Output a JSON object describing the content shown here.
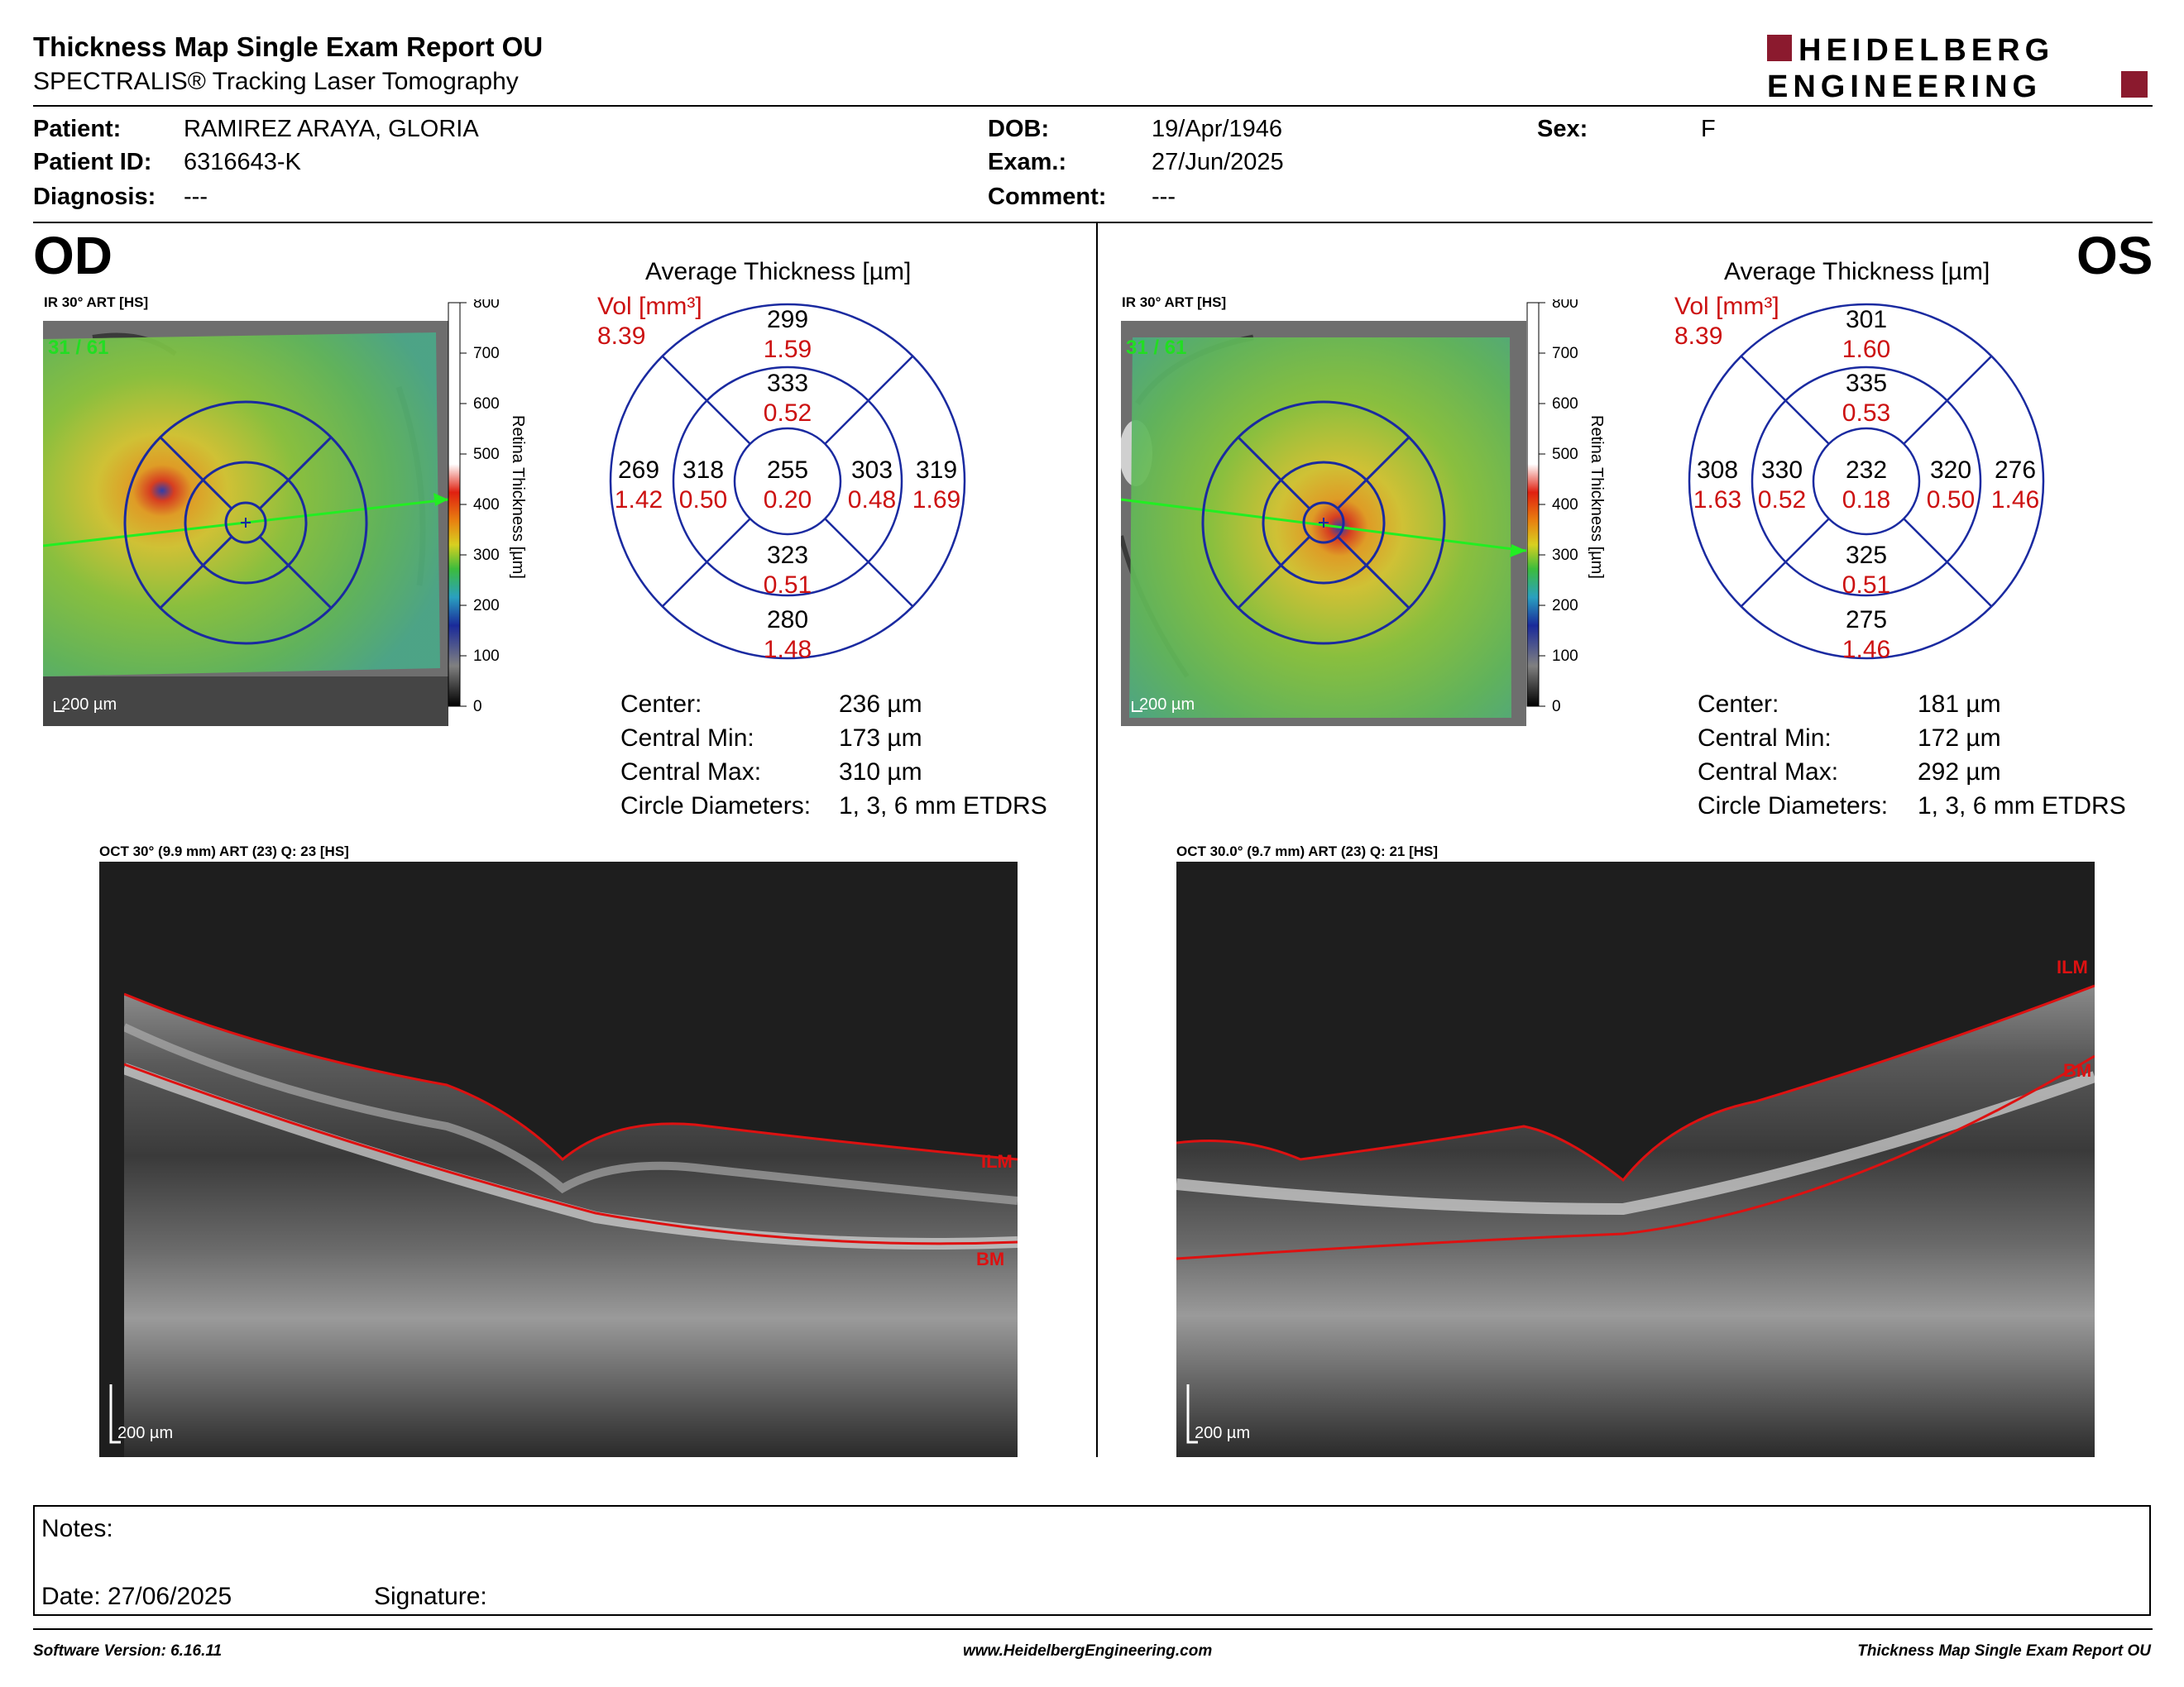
{
  "header": {
    "title": "Thickness Map Single Exam Report OU",
    "subtitle": "SPECTRALIS® Tracking Laser Tomography",
    "logo_line1": "HEIDELBERG",
    "logo_line2": "ENGINEERING",
    "logo_color": "#8b1a2e"
  },
  "patient": {
    "patient_label": "Patient:",
    "patient_value": "RAMIREZ ARAYA, GLORIA",
    "id_label": "Patient ID:",
    "id_value": "6316643-K",
    "diagnosis_label": "Diagnosis:",
    "diagnosis_value": "---",
    "dob_label": "DOB:",
    "dob_value": "19/Apr/1946",
    "exam_label": "Exam.:",
    "exam_value": "27/Jun/2025",
    "comment_label": "Comment:",
    "comment_value": "---",
    "sex_label": "Sex:",
    "sex_value": "F"
  },
  "od": {
    "eye_label": "OD",
    "ir_caption": "IR 30° ART [HS]",
    "frames": "31 / 61",
    "scale": "200 µm",
    "colorbar_ticks": [
      "800",
      "700",
      "600",
      "500",
      "400",
      "300",
      "200",
      "100",
      "0"
    ],
    "colorbar_label": "Retina  Thickness [µm]",
    "avg_title": "Average Thickness [µm]",
    "vol_label": "Vol [mm³]",
    "vol_value": "8.39",
    "sectors": {
      "outer_top": {
        "t": "299",
        "v": "1.59"
      },
      "inner_top": {
        "t": "333",
        "v": "0.52"
      },
      "outer_left": {
        "t": "269",
        "v": "1.42"
      },
      "inner_left": {
        "t": "318",
        "v": "0.50"
      },
      "center": {
        "t": "255",
        "v": "0.20"
      },
      "inner_right": {
        "t": "303",
        "v": "0.48"
      },
      "outer_right": {
        "t": "319",
        "v": "1.69"
      },
      "inner_bottom": {
        "t": "323",
        "v": "0.51"
      },
      "outer_bottom": {
        "t": "280",
        "v": "1.48"
      }
    },
    "stats": [
      {
        "label": "Center:",
        "value": "236 µm"
      },
      {
        "label": "Central Min:",
        "value": "173 µm"
      },
      {
        "label": "Central Max:",
        "value": "310 µm"
      },
      {
        "label": "Circle Diameters:",
        "value": "1, 3, 6 mm ETDRS"
      }
    ],
    "oct_caption": "OCT 30° (9.9 mm) ART (23) Q: 23 [HS]",
    "oct_scale": "200 µm",
    "ilm": "ILM",
    "bm": "BM"
  },
  "os": {
    "eye_label": "OS",
    "ir_caption": "IR 30° ART [HS]",
    "frames": "31 / 61",
    "scale": "200 µm",
    "colorbar_ticks": [
      "800",
      "700",
      "600",
      "500",
      "400",
      "300",
      "200",
      "100",
      "0"
    ],
    "colorbar_label": "Retina  Thickness [µm]",
    "avg_title": "Average Thickness [µm]",
    "vol_label": "Vol [mm³]",
    "vol_value": "8.39",
    "sectors": {
      "outer_top": {
        "t": "301",
        "v": "1.60"
      },
      "inner_top": {
        "t": "335",
        "v": "0.53"
      },
      "outer_left": {
        "t": "308",
        "v": "1.63"
      },
      "inner_left": {
        "t": "330",
        "v": "0.52"
      },
      "center": {
        "t": "232",
        "v": "0.18"
      },
      "inner_right": {
        "t": "320",
        "v": "0.50"
      },
      "outer_right": {
        "t": "276",
        "v": "1.46"
      },
      "inner_bottom": {
        "t": "325",
        "v": "0.51"
      },
      "outer_bottom": {
        "t": "275",
        "v": "1.46"
      }
    },
    "stats": [
      {
        "label": "Center:",
        "value": "181 µm"
      },
      {
        "label": "Central Min:",
        "value": "172 µm"
      },
      {
        "label": "Central Max:",
        "value": "292 µm"
      },
      {
        "label": "Circle Diameters:",
        "value": "1, 3, 6 mm ETDRS"
      }
    ],
    "oct_caption": "OCT 30.0° (9.7 mm) ART (23) Q: 21 [HS]",
    "oct_scale": "200 µm",
    "ilm": "ILM",
    "bm": "BM"
  },
  "notes": {
    "notes_label": "Notes:",
    "date_label": "Date: 27/06/2025",
    "signature_label": "Signature:"
  },
  "footer": {
    "software": "Software Version: 6.16.11",
    "website": "www.HeidelbergEngineering.com",
    "report": "Thickness Map Single Exam Report OU"
  }
}
